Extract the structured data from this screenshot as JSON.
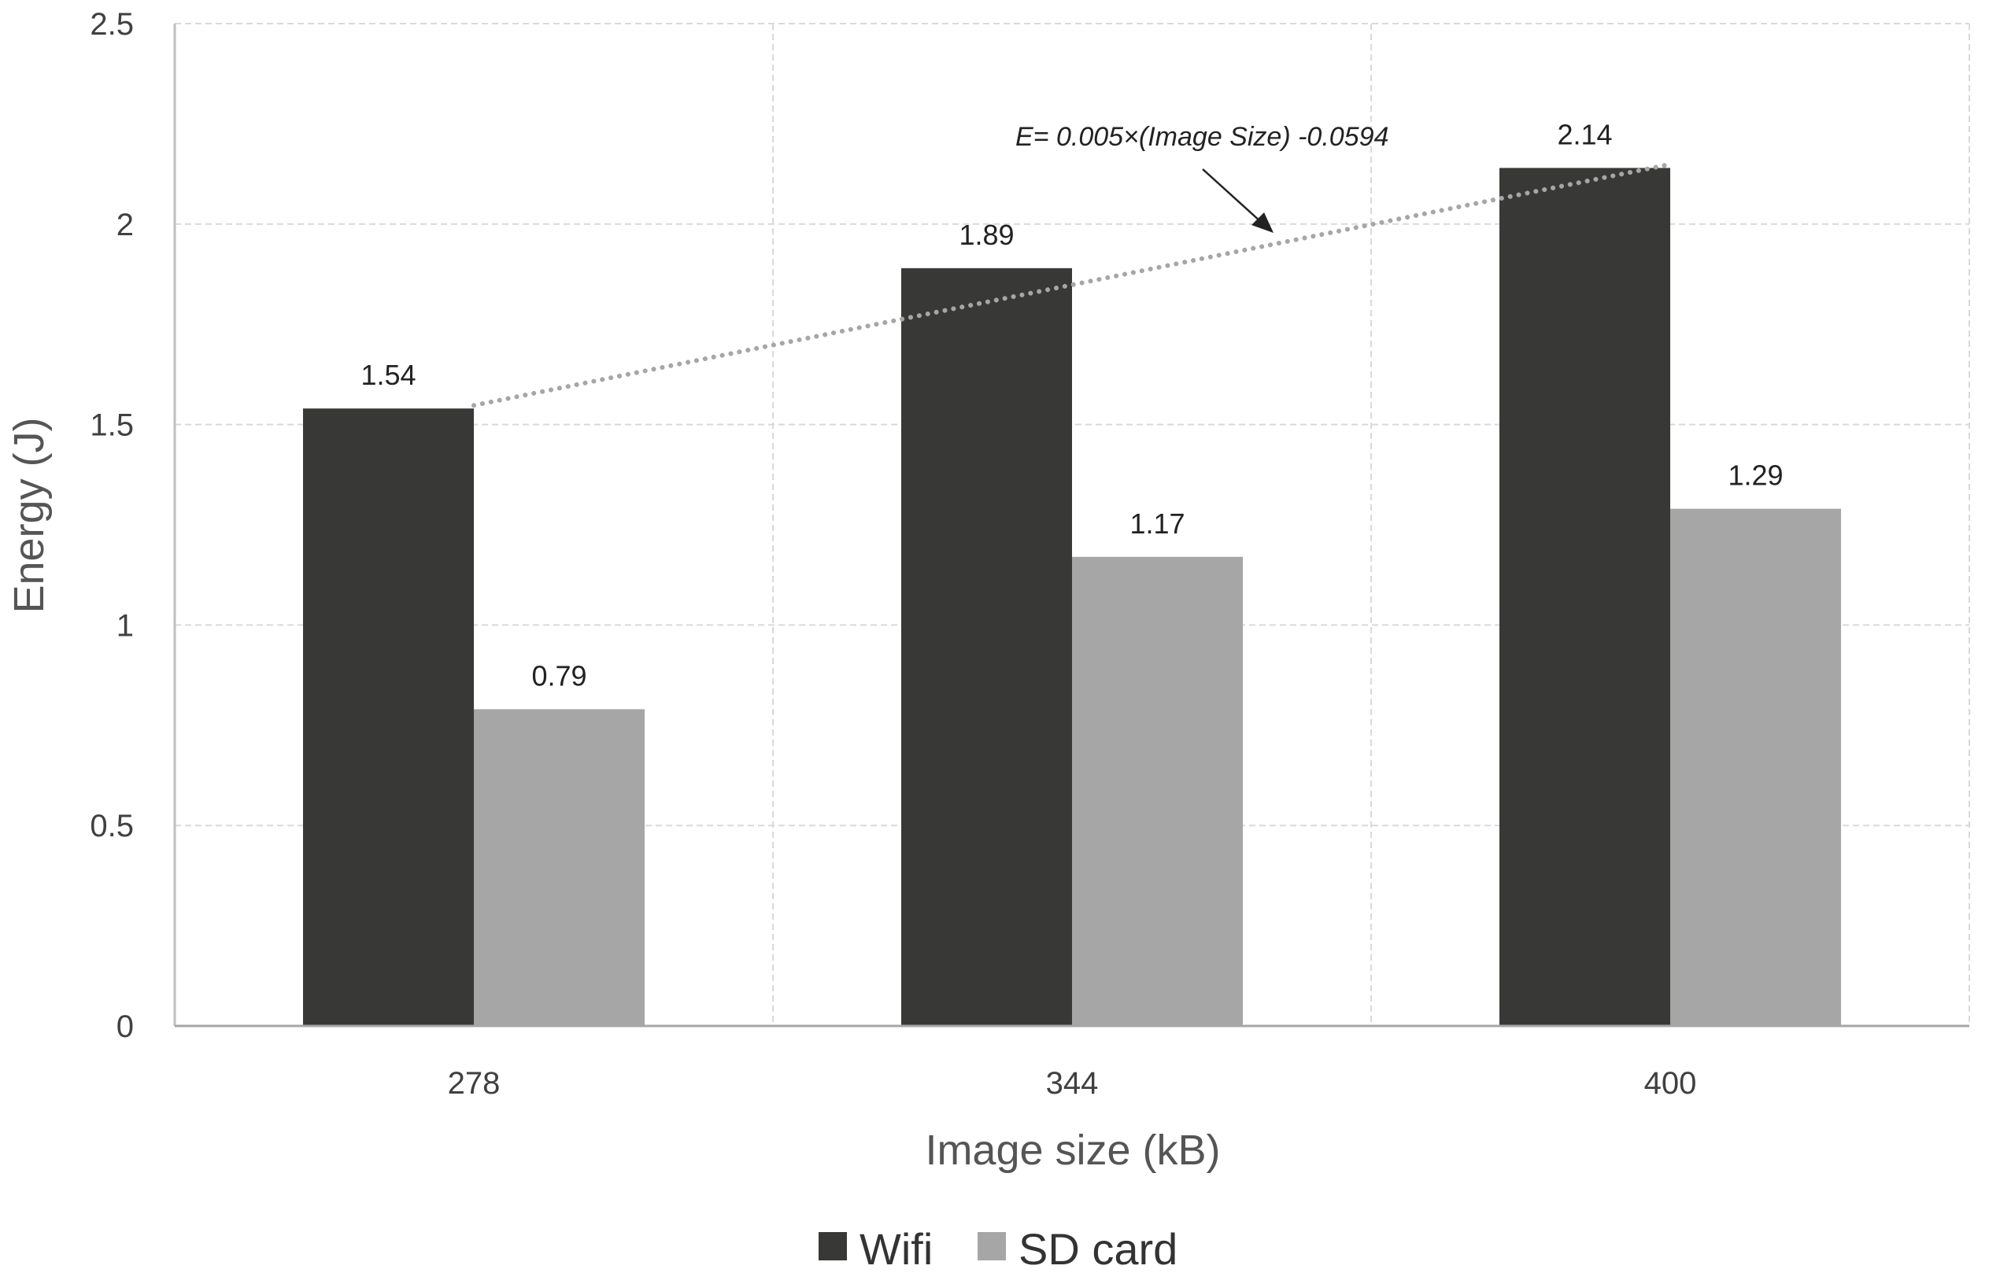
{
  "chart_data": {
    "type": "bar",
    "categories": [
      "278",
      "344",
      "400"
    ],
    "series": [
      {
        "name": "Wifi",
        "values": [
          1.54,
          1.89,
          2.14
        ],
        "color": "#383836"
      },
      {
        "name": "SD card",
        "values": [
          0.79,
          1.17,
          1.29
        ],
        "color": "#a6a6a6"
      }
    ],
    "data_labels": [
      [
        "1.54",
        "1.89",
        "2.14"
      ],
      [
        "0.79",
        "1.17",
        "1.29"
      ]
    ],
    "xlabel": "Image size (kB)",
    "ylabel": "Energy (J)",
    "ylim": [
      0,
      2.5
    ],
    "yticks": [
      "0",
      "0.5",
      "1",
      "1.5",
      "2",
      "2.5"
    ],
    "grid": true,
    "legend_position": "bottom",
    "trendline": {
      "series": "Wifi",
      "style": "dotted",
      "color": "#a6a6a6",
      "equation": "E= 0.005×(Image Size) -0.0594"
    }
  }
}
